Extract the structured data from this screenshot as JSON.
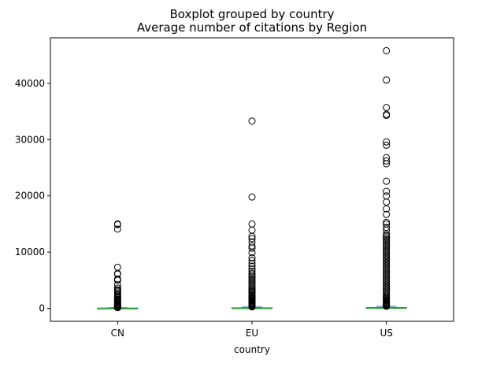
{
  "chart_data": {
    "type": "box",
    "suptitle": "Boxplot grouped by country",
    "title": "Average number of citations by Region",
    "xlabel": "country",
    "ylabel": "",
    "ylim": [
      -2300,
      48100
    ],
    "yticks": [
      0,
      10000,
      20000,
      30000,
      40000
    ],
    "ytick_labels": [
      "0",
      "10000",
      "20000",
      "30000",
      "40000"
    ],
    "categories": [
      "CN",
      "EU",
      "US"
    ],
    "grid": false,
    "colors": {
      "box": "#1f77b4",
      "median": "#2ca02c",
      "whisker": "#1f77b4",
      "flier": "#000000"
    },
    "boxes": [
      {
        "name": "CN",
        "whislo": 0,
        "q1": 3,
        "med": 12,
        "q3": 45,
        "whishi": 110,
        "fliers": [
          15000,
          14900,
          14100,
          7300,
          6200,
          6100,
          5200,
          5000,
          4200,
          3600,
          3300,
          3100,
          2900,
          2600,
          2400,
          2200,
          2000,
          1800,
          1600,
          1400,
          1250,
          1100,
          950,
          800,
          700,
          600,
          500,
          420,
          350,
          290,
          240,
          200,
          170,
          140,
          125
        ]
      },
      {
        "name": "EU",
        "whislo": 0,
        "q1": 5,
        "med": 25,
        "q3": 100,
        "whishi": 240,
        "fliers": [
          33300,
          19800,
          15000,
          13900,
          12800,
          12400,
          11800,
          11100,
          10700,
          9900,
          9000,
          8500,
          8000,
          7500,
          7000,
          6600,
          6200,
          5900,
          5600,
          5300,
          5000,
          4700,
          4400,
          4100,
          3800,
          3500,
          3300,
          3100,
          2900,
          2700,
          2500,
          2300,
          2100,
          1900,
          1750,
          1600,
          1450,
          1300,
          1150,
          1000,
          880,
          760,
          650,
          560,
          480,
          410,
          350,
          300,
          270
        ]
      },
      {
        "name": "US",
        "whislo": 0,
        "q1": 8,
        "med": 40,
        "q3": 150,
        "whishi": 360,
        "fliers": [
          45800,
          40600,
          35700,
          34500,
          34300,
          29600,
          29000,
          26800,
          26200,
          25700,
          22600,
          20800,
          20000,
          18900,
          17700,
          16700,
          15300,
          15000,
          14400,
          13900,
          13200,
          12900,
          12600,
          12300,
          12000,
          11700,
          11400,
          11100,
          10800,
          10500,
          10200,
          9900,
          9600,
          9300,
          9000,
          8700,
          8400,
          8100,
          7800,
          7500,
          7200,
          6900,
          6600,
          6300,
          6000,
          5700,
          5400,
          5100,
          4800,
          4500,
          4200,
          3900,
          3600,
          3300,
          3000,
          2700,
          2400,
          2200,
          2000,
          1800,
          1600,
          1450,
          1300,
          1150,
          1000,
          870,
          750,
          650,
          560,
          480,
          420,
          380
        ]
      }
    ]
  }
}
